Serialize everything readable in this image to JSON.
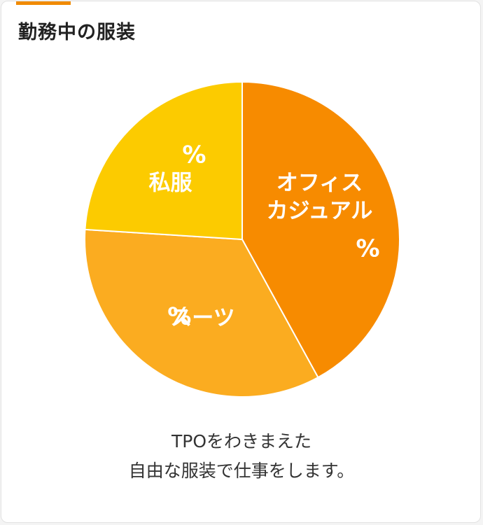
{
  "card": {
    "title": "勤務中の服装",
    "caption_line1": "TPOをわきまえた",
    "caption_line2": "自由な服装で仕事をします。"
  },
  "chart_data": {
    "type": "pie",
    "title": "勤務中の服装",
    "slices": [
      {
        "label": "オフィス\nカジュアル",
        "value": 42,
        "display": "%",
        "color": "#f78b00"
      },
      {
        "label": "スーツ",
        "value": 34,
        "display": "%",
        "color": "#fbac20"
      },
      {
        "label": "私服",
        "value": 24,
        "display": "%",
        "color": "#fccb00"
      }
    ]
  }
}
